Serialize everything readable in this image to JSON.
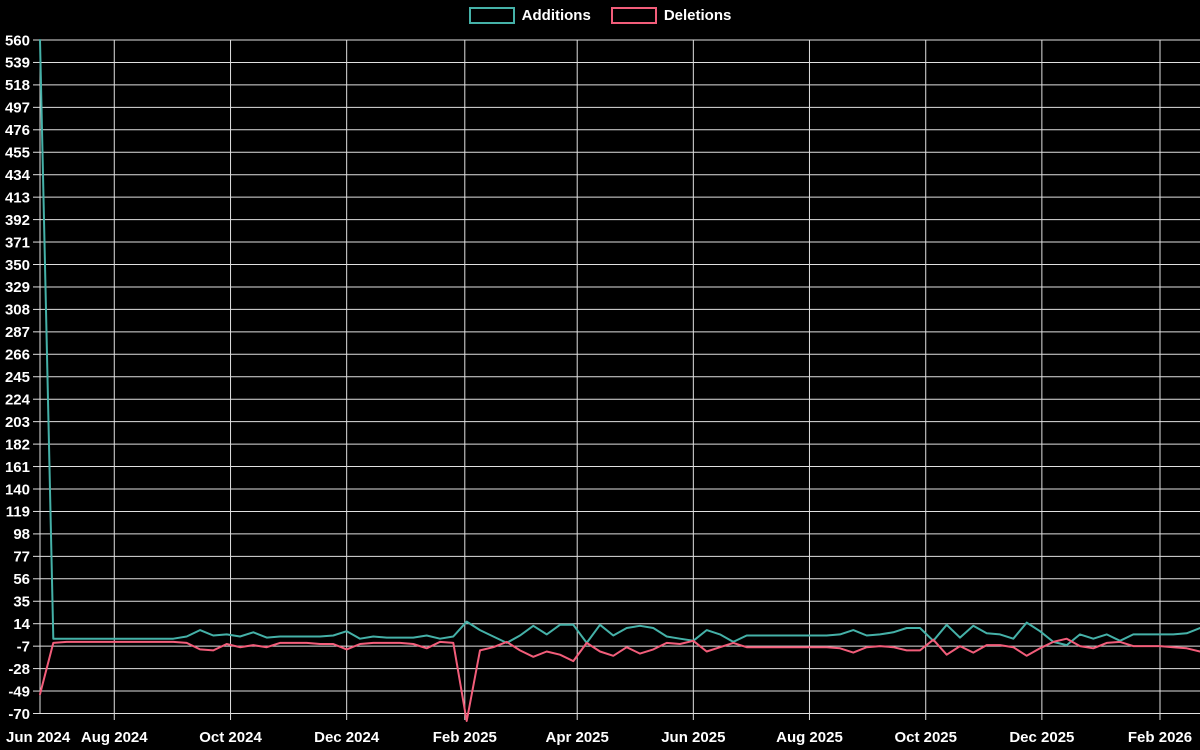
{
  "page": {
    "background_color": "#000000",
    "text_color": "#ffffff",
    "grid_color": "#e0e0e0"
  },
  "legend": {
    "position": "top-center",
    "items": [
      {
        "label": "Additions",
        "color": "#45b1a8"
      },
      {
        "label": "Deletions",
        "color": "#f25d7a"
      }
    ]
  },
  "chart_data": {
    "type": "line",
    "title": "",
    "grid": true,
    "legend_position": "top-center",
    "background": "#000000",
    "x_axis": {
      "unit": "weeks",
      "tick_labels": [
        "Jun 2024",
        "Aug 2024",
        "Oct 2024",
        "Dec 2024",
        "Feb 2025",
        "Apr 2025",
        "Jun 2025",
        "Aug 2025",
        "Oct 2025",
        "Dec 2025",
        "Feb 2026"
      ],
      "tick_week_positions": [
        -3.14,
        5.57,
        14.29,
        23.0,
        31.86,
        40.29,
        49.0,
        57.71,
        66.43,
        75.14,
        84.0
      ],
      "week_count": 87
    },
    "y_axis": {
      "min": -70,
      "max": 560,
      "step": 21,
      "ticks": [
        560,
        539,
        518,
        497,
        476,
        455,
        434,
        413,
        392,
        371,
        350,
        329,
        308,
        287,
        266,
        245,
        224,
        203,
        182,
        161,
        140,
        119,
        98,
        77,
        56,
        35,
        14,
        -7,
        -28,
        -49,
        -70
      ]
    },
    "series": [
      {
        "name": "Additions",
        "color": "#45b1a8",
        "values": [
          560,
          0,
          0,
          0,
          0,
          0,
          0,
          0,
          0,
          0,
          0,
          2,
          8,
          3,
          4,
          2,
          6,
          1,
          2,
          2,
          2,
          2,
          3,
          7,
          0,
          2,
          1,
          1,
          1,
          3,
          0,
          2,
          16,
          8,
          2,
          -4,
          3,
          12,
          4,
          13,
          13,
          -4,
          13,
          3,
          10,
          12,
          10,
          2,
          0,
          -2,
          8,
          4,
          -3,
          3,
          3,
          3,
          3,
          3,
          3,
          3,
          4,
          8,
          3,
          4,
          6,
          10,
          10,
          -2,
          13,
          1,
          12,
          5,
          4,
          0,
          15,
          7,
          -3,
          -6,
          4,
          0,
          4,
          -2,
          4,
          4,
          4,
          4,
          5,
          10
        ]
      },
      {
        "name": "Deletions",
        "color": "#f25d7a",
        "values": [
          -52,
          -4,
          -3,
          -3,
          -3,
          -3,
          -3,
          -3,
          -3,
          -3,
          -3,
          -4,
          -10,
          -11,
          -5,
          -8,
          -6,
          -8,
          -4,
          -4,
          -4,
          -5,
          -5,
          -10,
          -5,
          -4,
          -4,
          -4,
          -5,
          -9,
          -3,
          -4,
          -77,
          -11,
          -8,
          -3,
          -11,
          -17,
          -12,
          -15,
          -21,
          -4,
          -12,
          -16,
          -8,
          -14,
          -10,
          -4,
          -5,
          -2,
          -12,
          -8,
          -4,
          -8,
          -8,
          -8,
          -8,
          -8,
          -8,
          -8,
          -9,
          -13,
          -8,
          -7,
          -8,
          -11,
          -11,
          -1,
          -15,
          -7,
          -13,
          -6,
          -6,
          -8,
          -16,
          -9,
          -3,
          0,
          -7,
          -9,
          -4,
          -3,
          -7,
          -7,
          -7,
          -8,
          -9,
          -12
        ]
      }
    ]
  }
}
